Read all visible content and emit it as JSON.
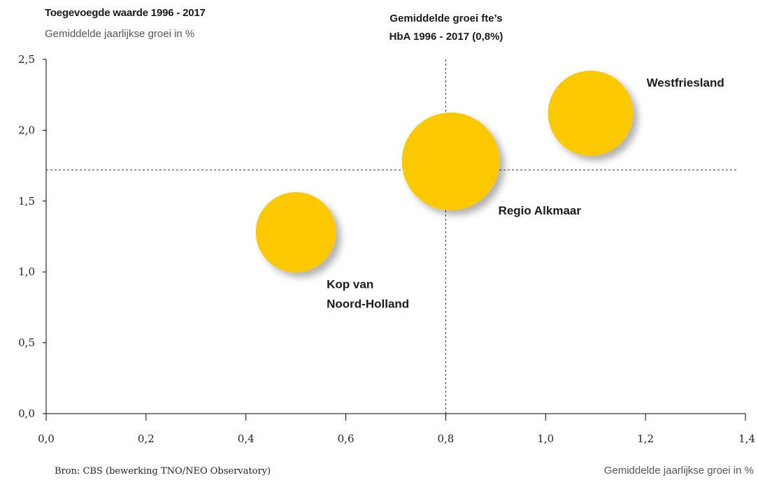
{
  "header": {
    "title": "Toegevoegde waarde 1996 - 2017",
    "subtitle": "Gemiddelde jaarlijkse groei in %",
    "reference_title_line1": "Gemiddelde groei fte’s",
    "reference_title_line2": "HbA 1996 - 2017 (0,8%)"
  },
  "footer": {
    "source": "Bron: CBS (bewerking TNO/NEO Observatory)",
    "x_unit": "Gemiddelde jaarlijkse groei in %"
  },
  "chart_data": {
    "type": "scatter",
    "title": "Toegevoegde waarde 1996 - 2017",
    "ylabel": "Gemiddelde jaarlijkse groei in %",
    "xlabel": "Gemiddelde jaarlijkse groei in %",
    "xlim": [
      0,
      1.4
    ],
    "ylim": [
      0,
      2.5
    ],
    "x_ticks": [
      "0,0",
      "0,2",
      "0,4",
      "0,6",
      "0,8",
      "1,0",
      "1,2",
      "1,4"
    ],
    "y_ticks": [
      "0,0",
      "0,5",
      "1,0",
      "1,5",
      "2,0",
      "2,5"
    ],
    "reference_lines": {
      "x": 0.8,
      "y": 1.72
    },
    "bubble_color": "#fcc800",
    "grid": false,
    "points": [
      {
        "label_lines": [
          "Kop van",
          "Noord-Holland"
        ],
        "x": 0.5,
        "y": 1.28,
        "relative_size": 0.82
      },
      {
        "label_lines": [
          "Regio Alkmaar"
        ],
        "x": 0.81,
        "y": 1.78,
        "relative_size": 1.0
      },
      {
        "label_lines": [
          "Westfriesland"
        ],
        "x": 1.09,
        "y": 2.12,
        "relative_size": 0.87
      }
    ]
  }
}
